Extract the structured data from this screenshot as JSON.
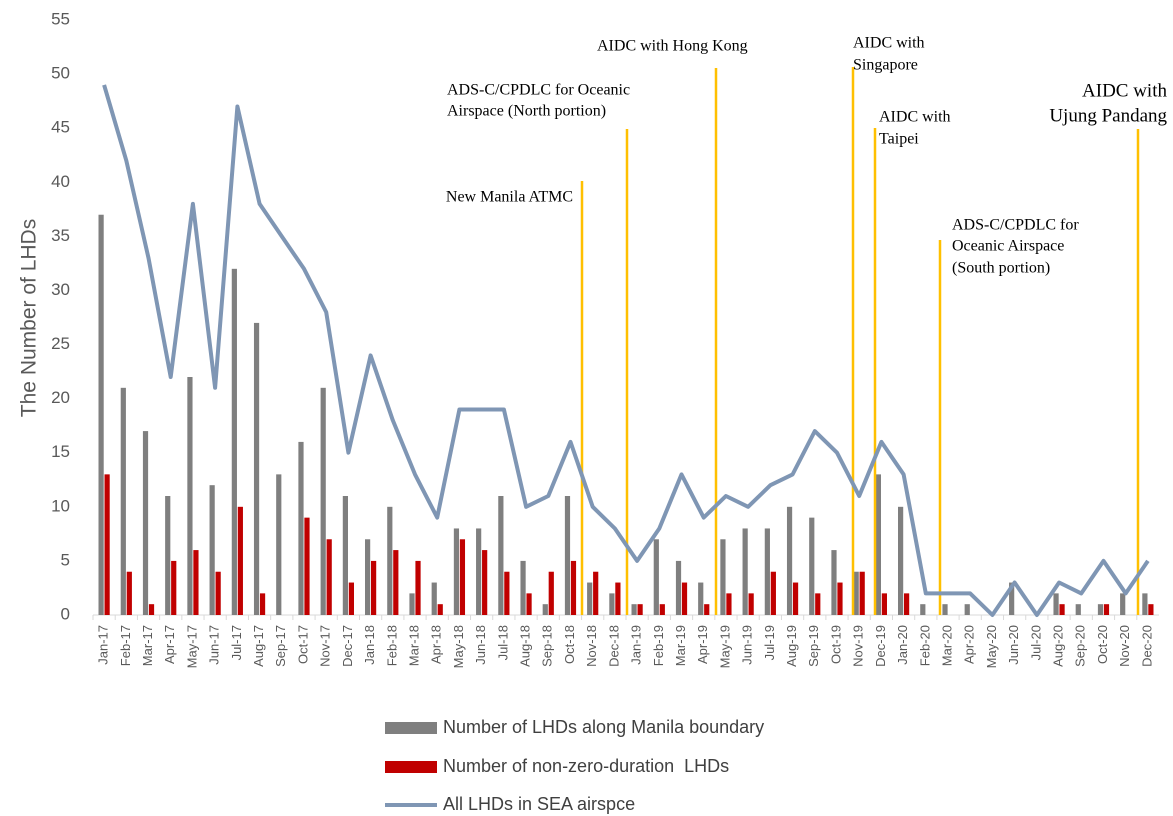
{
  "chart_data": {
    "type": "bar-line",
    "y_label": "The Number of LHDs",
    "categories": [
      "Jan-17",
      "Feb-17",
      "Mar-17",
      "Apr-17",
      "May-17",
      "Jun-17",
      "Jul-17",
      "Aug-17",
      "Sep-17",
      "Oct-17",
      "Nov-17",
      "Dec-17",
      "Jan-18",
      "Feb-18",
      "Mar-18",
      "Apr-18",
      "May-18",
      "Jun-18",
      "Jul-18",
      "Aug-18",
      "Sep-18",
      "Oct-18",
      "Nov-18",
      "Dec-18",
      "Jan-19",
      "Feb-19",
      "Mar-19",
      "Apr-19",
      "May-19",
      "Jun-19",
      "Jul-19",
      "Aug-19",
      "Sep-19",
      "Oct-19",
      "Nov-19",
      "Dec-19",
      "Jan-20",
      "Feb-20",
      "Mar-20",
      "Apr-20",
      "May-20",
      "Jun-20",
      "Jul-20",
      "Aug-20",
      "Sep-20",
      "Oct-20",
      "Nov-20",
      "Dec-20"
    ],
    "series": [
      {
        "name": "Number of LHDs along Manila boundary",
        "kind": "bar",
        "color": "#7f7f7f",
        "values": [
          37,
          21,
          17,
          11,
          22,
          12,
          32,
          27,
          13,
          16,
          21,
          11,
          7,
          10,
          2,
          3,
          8,
          8,
          11,
          5,
          1,
          11,
          3,
          2,
          1,
          7,
          5,
          3,
          7,
          8,
          8,
          10,
          9,
          6,
          4,
          13,
          10,
          1,
          1,
          1,
          0,
          3,
          0,
          2,
          1,
          1,
          2,
          2
        ]
      },
      {
        "name": "Number of non-zero-duration  LHDs",
        "kind": "bar",
        "color": "#c00000",
        "values": [
          13,
          4,
          1,
          5,
          6,
          4,
          10,
          2,
          0,
          9,
          7,
          3,
          5,
          6,
          5,
          1,
          7,
          6,
          4,
          2,
          4,
          5,
          4,
          3,
          1,
          1,
          3,
          1,
          2,
          2,
          4,
          3,
          2,
          3,
          4,
          2,
          2,
          0,
          0,
          0,
          0,
          0,
          0,
          1,
          0,
          1,
          0,
          1
        ]
      },
      {
        "name": "All LHDs in SEA airspce",
        "kind": "line",
        "color": "#7f96b4",
        "values": [
          49,
          42,
          33,
          22,
          38,
          21,
          47,
          38,
          35,
          32,
          28,
          15,
          24,
          18,
          13,
          9,
          19,
          19,
          19,
          10,
          11,
          16,
          10,
          8,
          5,
          8,
          13,
          9,
          11,
          10,
          12,
          13,
          17,
          15,
          11,
          16,
          13,
          2,
          2,
          2,
          0,
          3,
          0,
          3,
          2,
          5,
          2,
          5
        ]
      }
    ],
    "ylim": [
      0,
      55
    ],
    "yticks": [
      0,
      5,
      10,
      15,
      20,
      25,
      30,
      35,
      40,
      45,
      50,
      55
    ],
    "grid": false,
    "annotations": [
      {
        "text": [
          "New Manila ATMC"
        ],
        "color": "#ffc000"
      },
      {
        "text": [
          "ADS-C/CPDLC for Oceanic",
          "Airspace (North portion)"
        ],
        "color": "#ffc000"
      },
      {
        "text": [
          "AIDC with Hong Kong"
        ],
        "color": "#ffc000"
      },
      {
        "text": [
          "AIDC with",
          "Singapore"
        ],
        "color": "#ffc000"
      },
      {
        "text": [
          "AIDC with",
          "Taipei"
        ],
        "color": "#ffc000"
      },
      {
        "text": [
          "ADS-C/CPDLC for",
          "Oceanic Airspace",
          "(South portion)"
        ],
        "color": "#ffc000"
      },
      {
        "text": [
          "AIDC with",
          "Ujung Pandang"
        ],
        "color": "#ffc000"
      }
    ]
  }
}
